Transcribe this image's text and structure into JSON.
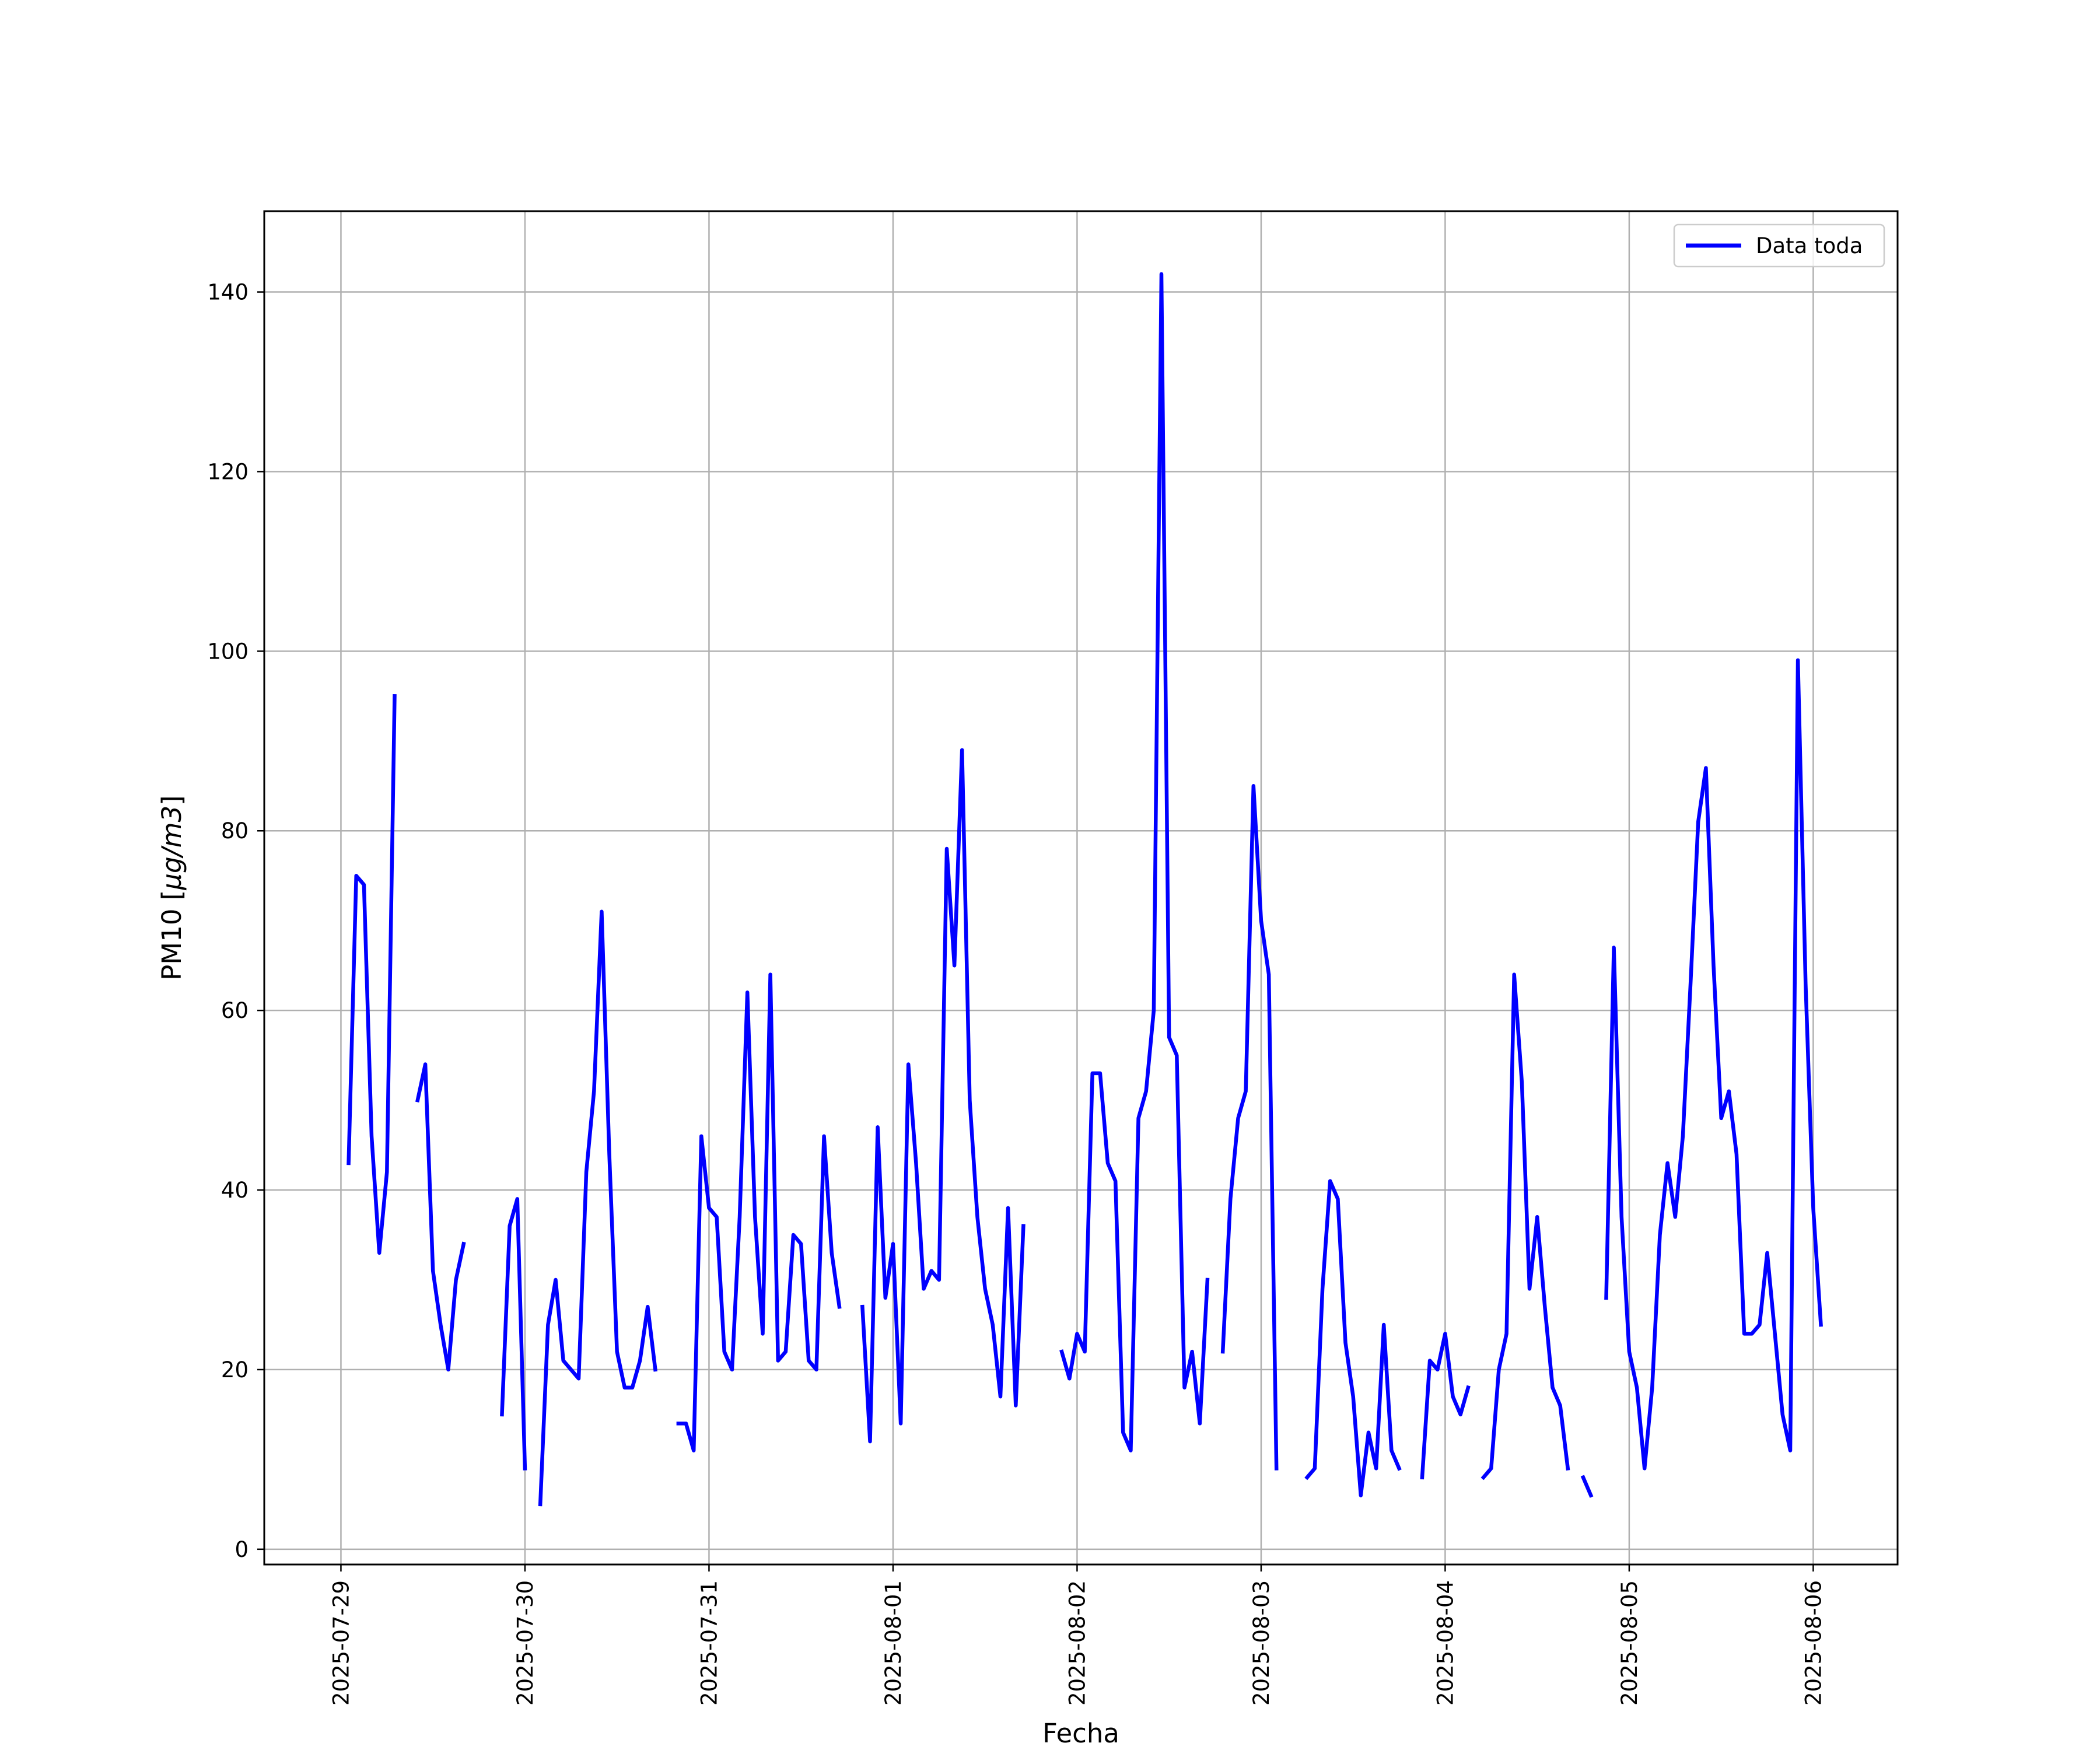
{
  "chart_data": {
    "type": "line",
    "title": "",
    "xlabel": "Fecha",
    "ylabel": "PM10 [μg/m3]",
    "ylabel_unit_math": "μg/m3",
    "ylim": [
      -1.7,
      149
    ],
    "xlim": [
      "2025-07-28 14:00",
      "2025-08-06 11:00"
    ],
    "yticks": [
      0,
      20,
      40,
      60,
      80,
      100,
      120,
      140
    ],
    "xticks": [
      "2025-07-29",
      "2025-07-30",
      "2025-07-31",
      "2025-08-01",
      "2025-08-02",
      "2025-08-03",
      "2025-08-04",
      "2025-08-05",
      "2025-08-06"
    ],
    "grid": true,
    "legend": {
      "position": "upper-right",
      "entries": [
        "Data toda"
      ]
    },
    "colors": {
      "series": "#0000ff",
      "grid": "#b0b0b0",
      "axes": "#000000"
    },
    "series": [
      {
        "name": "Data toda",
        "start": "2025-07-29 01:00",
        "step_hours": 1,
        "values": [
          43,
          75,
          74,
          46,
          33,
          42,
          95,
          null,
          null,
          50,
          54,
          31,
          25,
          20,
          30,
          34,
          null,
          null,
          null,
          null,
          15,
          36,
          39,
          9,
          null,
          5,
          25,
          30,
          21,
          20,
          19,
          42,
          51,
          71,
          44,
          22,
          18,
          18,
          21,
          27,
          20,
          null,
          null,
          14,
          14,
          11,
          46,
          38,
          37,
          22,
          20,
          37,
          62,
          37,
          24,
          64,
          21,
          22,
          35,
          34,
          21,
          20,
          46,
          33,
          27,
          null,
          null,
          27,
          12,
          47,
          28,
          34,
          14,
          54,
          43,
          29,
          31,
          30,
          78,
          65,
          89,
          50,
          37,
          29,
          25,
          17,
          38,
          16,
          36,
          null,
          null,
          null,
          null,
          22,
          19,
          24,
          22,
          53,
          53,
          43,
          41,
          13,
          11,
          48,
          51,
          60,
          142,
          57,
          55,
          18,
          22,
          14,
          30,
          null,
          22,
          39,
          48,
          51,
          85,
          70,
          64,
          9,
          null,
          null,
          null,
          8,
          9,
          29,
          41,
          39,
          23,
          17,
          6,
          13,
          9,
          25,
          11,
          9,
          null,
          null,
          8,
          21,
          20,
          24,
          17,
          15,
          18,
          null,
          8,
          9,
          20,
          24,
          64,
          52,
          29,
          37,
          27,
          18,
          16,
          9,
          null,
          8,
          6,
          null,
          28,
          67,
          37,
          22,
          18,
          9,
          18,
          35,
          43,
          37,
          46,
          63,
          81,
          87,
          65,
          48,
          51,
          44,
          24,
          24,
          25,
          33,
          24,
          15,
          11,
          99,
          63,
          38,
          25
        ]
      }
    ]
  }
}
